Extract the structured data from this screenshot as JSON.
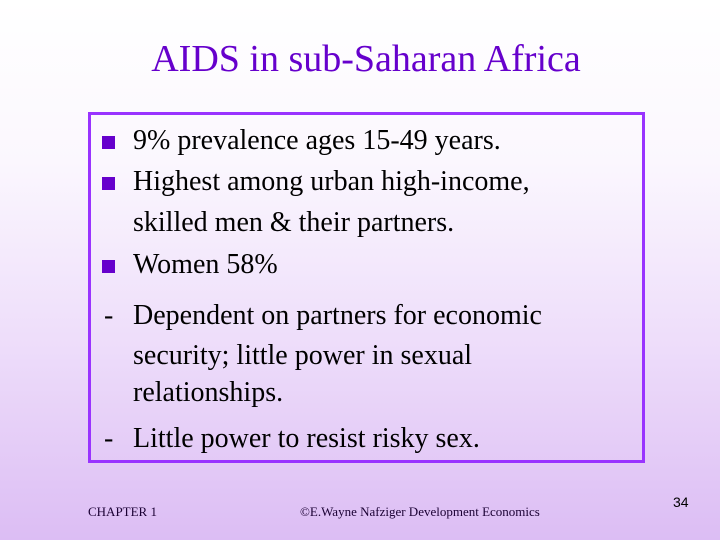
{
  "slide": {
    "title": "AIDS in sub-Saharan Africa",
    "bullets": [
      "9% prevalence ages 15-49 years.",
      "Highest among urban high-income,",
      "skilled men & their partners.",
      "Women 58%"
    ],
    "sub_items": [
      "Dependent on partners for economic",
      "security; little power in sexual",
      "relationships.",
      "Little power to resist risky sex."
    ],
    "dash_symbol": "-"
  },
  "footer": {
    "chapter": "CHAPTER 1",
    "copyright": "©E.Wayne Nafziger Development Economics",
    "page_number": "34"
  },
  "colors": {
    "title": "#6600cc",
    "bullet": "#6600cc",
    "box_border": "#9933ff",
    "background_top": "#ffffff",
    "background_bottom": "#dcbdf4"
  }
}
